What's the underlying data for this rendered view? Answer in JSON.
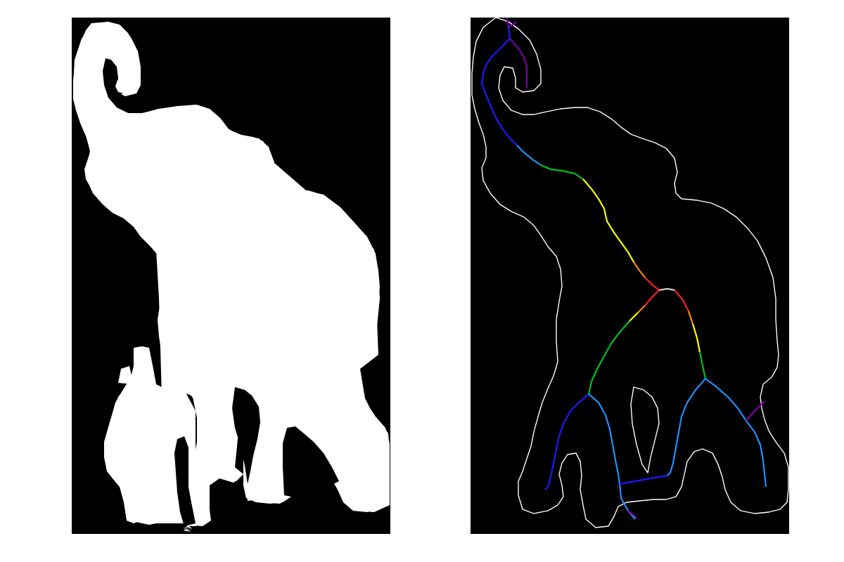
{
  "figure": {
    "panels": [
      {
        "name": "binary-silhouette",
        "kind": "filled-mask"
      },
      {
        "name": "skeleton-overlay",
        "kind": "contour-and-skeleton"
      }
    ],
    "colors": {
      "background": "#000000",
      "page": "#ffffff",
      "mask_fill": "#ffffff",
      "contour_stroke": "#ffffff"
    },
    "skeleton_palette": [
      "#7a00a8",
      "#1a1aff",
      "#1e90ff",
      "#00c020",
      "#ffff00",
      "#ff8c00",
      "#ff2020",
      "#d8c8c8"
    ]
  }
}
